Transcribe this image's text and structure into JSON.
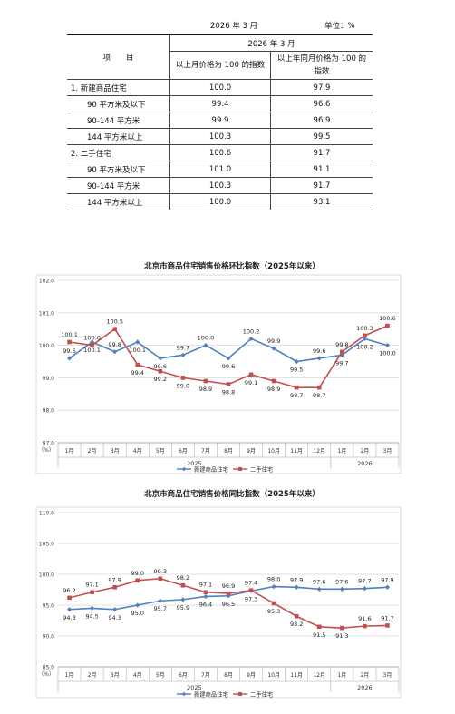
{
  "header": {
    "title": "2026 年 3 月",
    "unit": "单位：%"
  },
  "table": {
    "col_item": "项　　目",
    "col_group": "2026 年 3 月",
    "col_mom": "以上月价格为 100 的指数",
    "col_yoy": "以上年同月价格为 100 的指数",
    "rows": [
      {
        "label": "1. 新建商品住宅",
        "mom": "100.0",
        "yoy": "97.9"
      },
      {
        "label": "90 平方米及以下",
        "mom": "99.4",
        "yoy": "96.6"
      },
      {
        "label": "90-144 平方米",
        "mom": "99.9",
        "yoy": "96.9"
      },
      {
        "label": "144 平方米以上",
        "mom": "100.3",
        "yoy": "99.5"
      },
      {
        "label": "2. 二手住宅",
        "mom": "100.6",
        "yoy": "91.7"
      },
      {
        "label": "90 平方米及以下",
        "mom": "101.0",
        "yoy": "91.1"
      },
      {
        "label": "90-144 平方米",
        "mom": "100.3",
        "yoy": "91.7"
      },
      {
        "label": "144 平方米以上",
        "mom": "100.0",
        "yoy": "93.1"
      }
    ]
  },
  "colors": {
    "new": "#4f81bd",
    "second": "#c0504d"
  },
  "chart_data": [
    {
      "type": "line",
      "title": "北京市商品住宅销售价格环比指数（2025年以来）",
      "yunit": "（%）",
      "ylim": [
        97.0,
        102.0
      ],
      "yticks": [
        "97.0",
        "98.0",
        "99.0",
        "100.0",
        "101.0",
        "102.0"
      ],
      "categories": [
        "1月",
        "2月",
        "3月",
        "4月",
        "5月",
        "6月",
        "7月",
        "8月",
        "9月",
        "10月",
        "11月",
        "12月",
        "1月",
        "2月",
        "3月"
      ],
      "years": [
        {
          "label": "2025",
          "from": 0,
          "to": 11
        },
        {
          "label": "2026",
          "from": 12,
          "to": 14
        }
      ],
      "grid": "horizontal",
      "legend": "bottom",
      "series": [
        {
          "name": "新建商品住宅",
          "values": [
            99.6,
            100.1,
            99.8,
            100.1,
            99.6,
            99.7,
            100.0,
            99.6,
            100.2,
            99.9,
            99.5,
            99.6,
            99.7,
            100.2,
            100.0
          ]
        },
        {
          "name": "二手住宅",
          "values": [
            100.1,
            100.0,
            100.5,
            99.4,
            99.2,
            99.0,
            98.9,
            98.8,
            99.1,
            98.9,
            98.7,
            98.7,
            99.8,
            100.3,
            100.6
          ]
        }
      ]
    },
    {
      "type": "line",
      "title": "北京市商品住宅销售价格同比指数（2025年以来）",
      "yunit": "（%）",
      "ylim": [
        85.0,
        110.0
      ],
      "yticks": [
        "85.0",
        "90.0",
        "95.0",
        "100.0",
        "105.0",
        "110.0"
      ],
      "categories": [
        "1月",
        "2月",
        "3月",
        "4月",
        "5月",
        "6月",
        "7月",
        "8月",
        "9月",
        "10月",
        "11月",
        "12月",
        "1月",
        "2月",
        "3月"
      ],
      "years": [
        {
          "label": "2025",
          "from": 0,
          "to": 11
        },
        {
          "label": "2026",
          "from": 12,
          "to": 14
        }
      ],
      "grid": "horizontal",
      "legend": "bottom",
      "series": [
        {
          "name": "新建商品住宅",
          "values": [
            94.3,
            94.5,
            94.3,
            95.0,
            95.7,
            95.9,
            96.4,
            96.5,
            97.3,
            98.0,
            97.9,
            97.6,
            97.6,
            97.7,
            97.9
          ]
        },
        {
          "name": "二手住宅",
          "values": [
            96.2,
            97.1,
            97.9,
            99.0,
            99.3,
            98.2,
            97.1,
            96.9,
            97.4,
            95.3,
            93.2,
            91.5,
            91.3,
            91.6,
            91.7
          ]
        }
      ]
    }
  ]
}
